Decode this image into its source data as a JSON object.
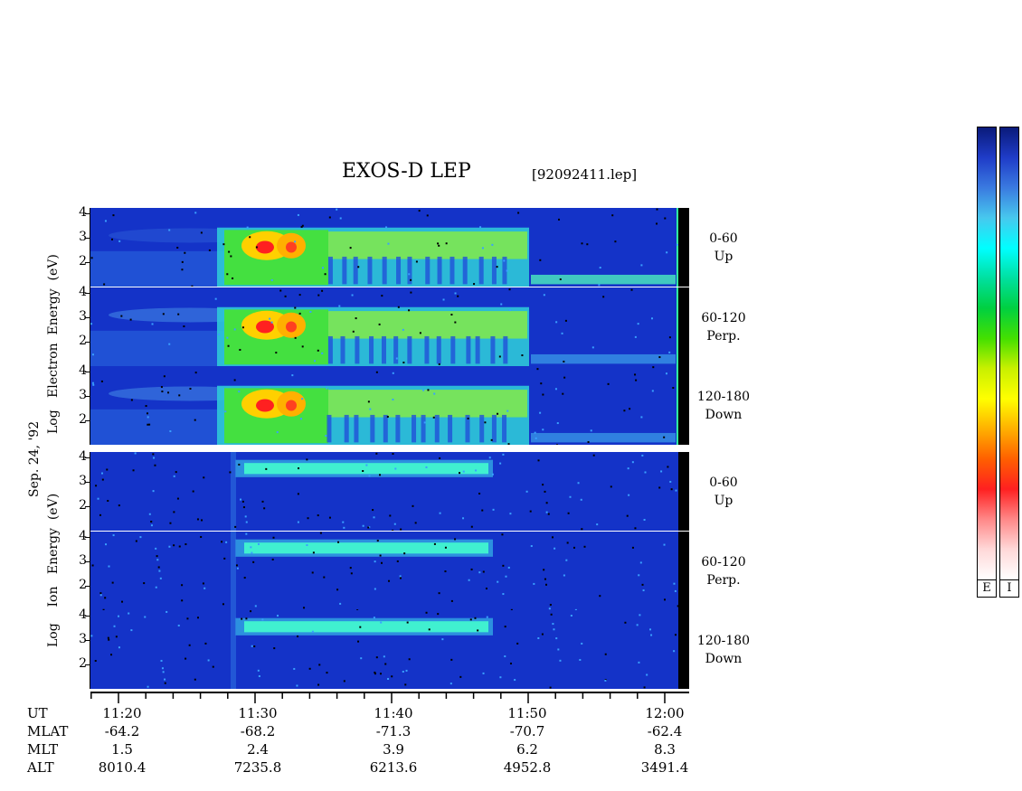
{
  "header": {
    "title": "EXOS-D LEP",
    "filename": "[92092411.lep]"
  },
  "electron": {
    "ylabel_parts": [
      "Log",
      "Electron",
      "Energy",
      "(eV)"
    ],
    "panels": [
      {
        "label_top": "0-60",
        "label_bottom": "Up",
        "ticks": [
          "4",
          "3",
          "2"
        ]
      },
      {
        "label_top": "60-120",
        "label_bottom": "Perp.",
        "ticks": [
          "4",
          "3",
          "2"
        ]
      },
      {
        "label_top": "120-180",
        "label_bottom": "Down",
        "ticks": [
          "4",
          "3",
          "2"
        ]
      }
    ]
  },
  "ion": {
    "ylabel_parts": [
      "Log",
      "Ion",
      "Energy",
      "(eV)"
    ],
    "panels": [
      {
        "label_top": "0-60",
        "label_bottom": "Up",
        "ticks": [
          "4",
          "3",
          "2"
        ]
      },
      {
        "label_top": "60-120",
        "label_bottom": "Perp.",
        "ticks": [
          "4",
          "3",
          "2"
        ]
      },
      {
        "label_top": "120-180",
        "label_bottom": "Down",
        "ticks": [
          "4",
          "3",
          "2"
        ]
      }
    ]
  },
  "date_label": "Sep. 24, '92",
  "colorbar": {
    "colors": [
      "#0a1a7a",
      "#1f3cc8",
      "#3a7ae0",
      "#47c8ee",
      "#00ffff",
      "#00e0a0",
      "#00d040",
      "#44e000",
      "#c8f000",
      "#ffff00",
      "#ffb000",
      "#ff6000",
      "#ff2020",
      "#ff8888",
      "#ffd8d8",
      "#ffffff"
    ],
    "labels": [
      "E",
      "I"
    ]
  },
  "axis_table": {
    "rows": [
      "UT",
      "MLAT",
      "MLT",
      "ALT"
    ],
    "columns": [
      {
        "UT": "11:20",
        "MLAT": "-64.2",
        "MLT": "1.5",
        "ALT": "8010.4"
      },
      {
        "UT": "11:30",
        "MLAT": "-68.2",
        "MLT": "2.4",
        "ALT": "7235.8"
      },
      {
        "UT": "11:40",
        "MLAT": "-71.3",
        "MLT": "3.9",
        "ALT": "6213.6"
      },
      {
        "UT": "11:50",
        "MLAT": "-70.7",
        "MLT": "6.2",
        "ALT": "4952.8"
      },
      {
        "UT": "12:00",
        "MLAT": "-62.4",
        "MLT": "8.3",
        "ALT": "3491.4"
      }
    ]
  },
  "chart_data": {
    "type": "heatmap",
    "title": "EXOS-D LEP",
    "x": [
      "11:20",
      "11:30",
      "11:40",
      "11:50",
      "12:00"
    ],
    "y_ticks": [
      "2",
      "3",
      "4"
    ],
    "series": [
      {
        "name": "Electron 0-60 Up"
      },
      {
        "name": "Electron 60-120 Perp."
      },
      {
        "name": "Electron 120-180 Down"
      },
      {
        "name": "Ion 0-60 Up"
      },
      {
        "name": "Ion 60-120 Perp."
      },
      {
        "name": "Ion 120-180 Down"
      }
    ]
  }
}
